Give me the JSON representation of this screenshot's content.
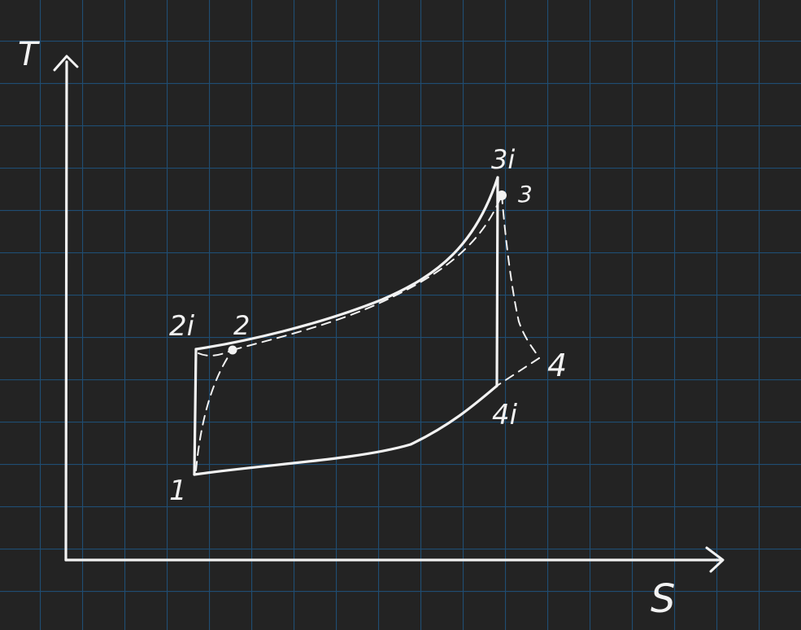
{
  "diagram": {
    "axes": {
      "y_label": "T",
      "x_label": "S"
    },
    "points": {
      "p1": "1",
      "p2i": "2i",
      "p2": "2",
      "p3i": "3i",
      "p3": "3",
      "p4": "4",
      "p4i": "4i"
    }
  },
  "colors": {
    "background": "#232323",
    "grid": "#1f4d73",
    "ink": "#f2f2f2"
  }
}
